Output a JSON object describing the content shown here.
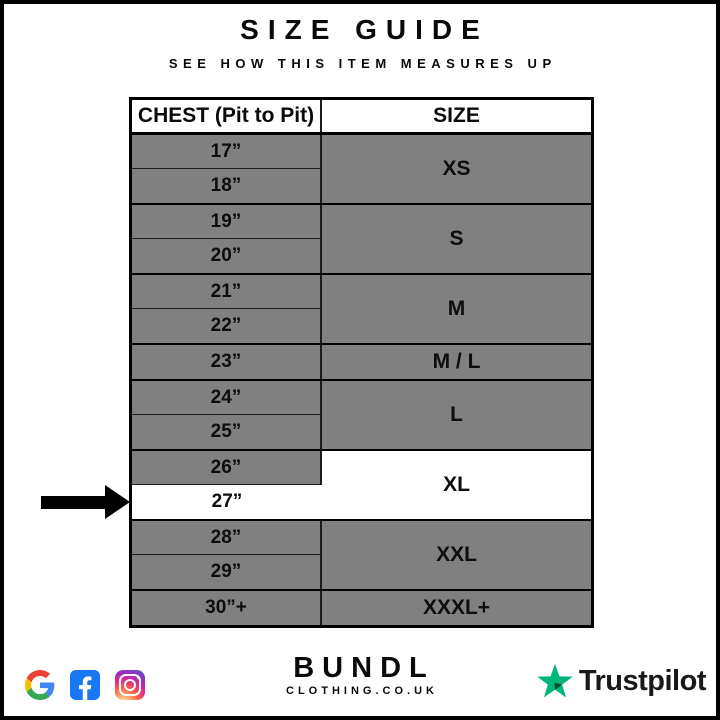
{
  "header": {
    "title": "SIZE GUIDE",
    "subtitle": "SEE HOW THIS ITEM MEASURES UP"
  },
  "table": {
    "columns": [
      "CHEST (Pit to Pit)",
      "SIZE"
    ],
    "groups": [
      {
        "size": "XS",
        "measurements": [
          {
            "label": "17”"
          },
          {
            "label": "18”"
          }
        ]
      },
      {
        "size": "S",
        "measurements": [
          {
            "label": "19”"
          },
          {
            "label": "20”"
          }
        ]
      },
      {
        "size": "M",
        "measurements": [
          {
            "label": "21”"
          },
          {
            "label": "22”"
          }
        ]
      },
      {
        "size": "M / L",
        "measurements": [
          {
            "label": "23”"
          }
        ]
      },
      {
        "size": "L",
        "measurements": [
          {
            "label": "24”"
          },
          {
            "label": "25”"
          }
        ]
      },
      {
        "size": "XL",
        "size_highlighted": true,
        "measurements": [
          {
            "label": "26”"
          },
          {
            "label": "27”",
            "highlighted": true,
            "arrow": true
          }
        ]
      },
      {
        "size": "XXL",
        "measurements": [
          {
            "label": "28”"
          },
          {
            "label": "29”"
          }
        ]
      },
      {
        "size": "XXXL+",
        "measurements": [
          {
            "label": "30”+"
          }
        ]
      }
    ],
    "highlighted_measurement": "27”",
    "highlighted_size": "XL"
  },
  "colors": {
    "cell_gray": "#808080",
    "highlight_white": "#ffffff",
    "border_black": "#000000",
    "trustpilot_green": "#00B67A",
    "trustpilot_dark_green": "#005128",
    "facebook_blue": "#1877F2",
    "google_blue": "#4285F4",
    "google_red": "#EA4335",
    "google_yellow": "#FBBC05",
    "google_green": "#34A853"
  },
  "footer": {
    "social_icons": [
      "google-icon",
      "facebook-icon",
      "instagram-icon"
    ],
    "brand_name": "BUNDL",
    "brand_domain": "CLOTHING.CO.UK",
    "trustpilot_label": "Trustpilot"
  }
}
